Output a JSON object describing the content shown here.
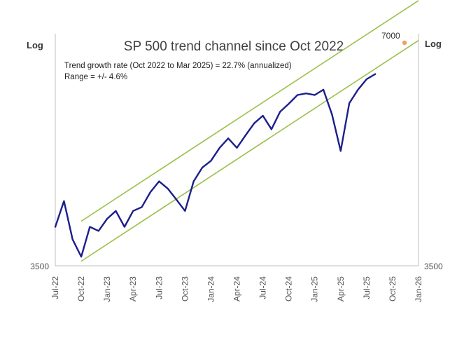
{
  "chart_data": {
    "type": "line",
    "title": "SP 500 trend channel since Oct 2022",
    "notes": [
      "Trend growth rate (Oct 2022 to Mar 2025) = 22.7% (annualized)",
      "Range = +/- 4.6%"
    ],
    "y_scale": "log",
    "ylabel_left": "Log",
    "ylabel_right": "Log",
    "ytick_left": "3500",
    "ytick_right": "3500",
    "ylim": [
      3500,
      7200
    ],
    "x_ticks": [
      "Jul-22",
      "Oct-22",
      "Jan-23",
      "Apr-23",
      "Jul-23",
      "Oct-23",
      "Jan-24",
      "Apr-24",
      "Jul-24",
      "Oct-24",
      "Jan-25",
      "Apr-25",
      "Jul-25",
      "Oct-25",
      "Jan-26"
    ],
    "xlim": [
      "Jul-22",
      "Jan-26"
    ],
    "colors": {
      "series": "#1b1f8a",
      "channel": "#9cc04a",
      "target": "#f0a060",
      "frame": "#bfbfbf"
    },
    "series": [
      {
        "values": [
          [
            "Jul-22",
            3950
          ],
          [
            "Aug-22",
            4280
          ],
          [
            "Sep-22",
            3800
          ],
          [
            "Oct-22",
            3600
          ],
          [
            "Nov-22",
            3950
          ],
          [
            "Dec-22",
            3900
          ],
          [
            "Jan-23",
            4050
          ],
          [
            "Feb-23",
            4150
          ],
          [
            "Mar-23",
            3950
          ],
          [
            "Apr-23",
            4150
          ],
          [
            "May-23",
            4200
          ],
          [
            "Jun-23",
            4400
          ],
          [
            "Jul-23",
            4550
          ],
          [
            "Aug-23",
            4450
          ],
          [
            "Sep-23",
            4300
          ],
          [
            "Oct-23",
            4150
          ],
          [
            "Nov-23",
            4550
          ],
          [
            "Dec-23",
            4750
          ],
          [
            "Jan-24",
            4850
          ],
          [
            "Feb-24",
            5050
          ],
          [
            "Mar-24",
            5200
          ],
          [
            "Apr-24",
            5050
          ],
          [
            "May-24",
            5250
          ],
          [
            "Jun-24",
            5450
          ],
          [
            "Jul-24",
            5580
          ],
          [
            "Aug-24",
            5350
          ],
          [
            "Sep-24",
            5650
          ],
          [
            "Oct-24",
            5790
          ],
          [
            "Nov-24",
            5950
          ],
          [
            "Dec-24",
            5980
          ],
          [
            "Jan-25",
            5950
          ],
          [
            "Feb-25",
            6050
          ],
          [
            "Mar-25",
            5600
          ],
          [
            "Apr-25",
            5000
          ],
          [
            "May-25",
            5800
          ],
          [
            "Jun-25",
            6050
          ],
          [
            "Jul-25",
            6250
          ],
          [
            "Aug-25",
            6350
          ]
        ]
      }
    ],
    "channel": {
      "lower": [
        [
          "Oct-22",
          3550
        ],
        [
          "Jan-26",
          7050
        ]
      ],
      "upper": [
        [
          "Oct-22",
          4020
        ],
        [
          "Jan-26",
          7980
        ]
      ]
    },
    "annotations": [
      {
        "text": "7000",
        "point": [
          "Jan-26",
          7000
        ]
      }
    ]
  }
}
